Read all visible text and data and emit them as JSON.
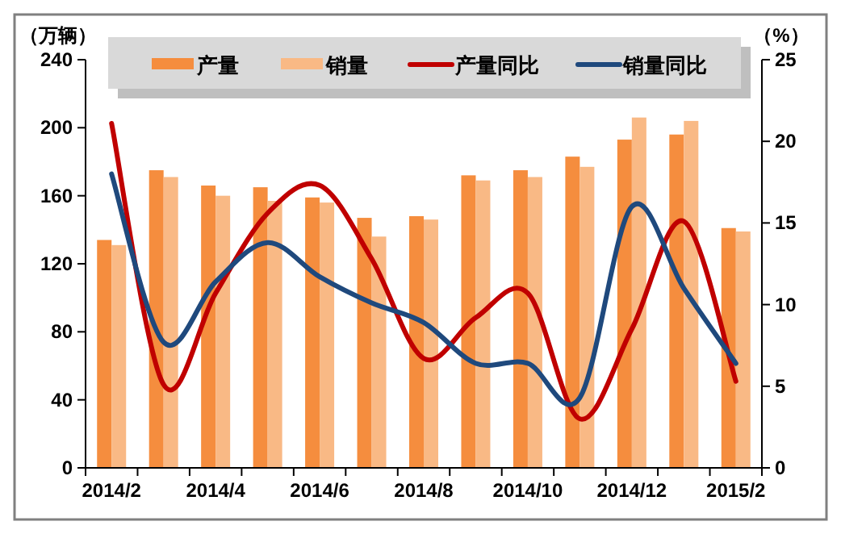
{
  "chart_data": {
    "type": "bar",
    "ylabel": "（万辆）",
    "y2label": "（%）",
    "categories": [
      "2014/2",
      null,
      "2014/4",
      null,
      "2014/6",
      null,
      "2014/8",
      null,
      "2014/10",
      null,
      "2014/12",
      null,
      "2015/2"
    ],
    "series": [
      {
        "name": "产量",
        "color": "#f58d3e",
        "values": [
          134,
          175,
          166,
          165,
          159,
          147,
          148,
          172,
          175,
          183,
          193,
          196,
          141
        ]
      },
      {
        "name": "销量",
        "color": "#f9b985",
        "values": [
          131,
          171,
          160,
          157,
          156,
          136,
          146,
          169,
          171,
          177,
          206,
          204,
          139
        ]
      },
      {
        "name": "产量同比",
        "type": "line",
        "axis": "y2",
        "color": "#c00000",
        "values": [
          21.1,
          5.1,
          10.7,
          15.6,
          17.3,
          12.8,
          6.7,
          9.2,
          10.7,
          3.0,
          8.5,
          15.1,
          5.3
        ]
      },
      {
        "name": "销量同比",
        "type": "line",
        "axis": "y2",
        "color": "#1f497d",
        "values": [
          18.0,
          7.7,
          11.4,
          13.8,
          11.7,
          10.1,
          8.9,
          6.4,
          6.4,
          4.3,
          16.0,
          11.0,
          6.4
        ]
      }
    ],
    "ylim": [
      0,
      240
    ],
    "yticks": [
      0,
      40,
      80,
      120,
      160,
      200,
      240
    ],
    "y2lim": [
      0,
      25
    ],
    "y2ticks": [
      0,
      5,
      10,
      15,
      20,
      25
    ],
    "legend": "top",
    "grid": false,
    "marker": "none"
  }
}
